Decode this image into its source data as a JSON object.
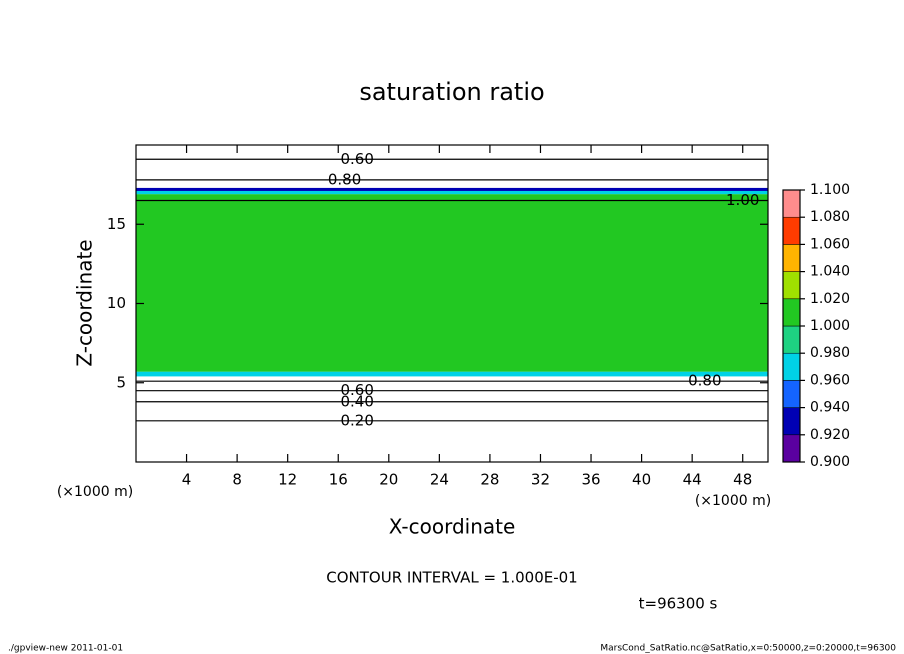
{
  "chart_data": {
    "type": "contour",
    "title": "saturation ratio",
    "xlabel": "X-coordinate",
    "ylabel": "Z-coordinate",
    "xunit": "(×1000 m)",
    "yunit": "(×1000 m)",
    "xlim": [
      0,
      50
    ],
    "xticks": [
      4,
      8,
      12,
      16,
      20,
      24,
      28,
      32,
      36,
      40,
      44,
      48
    ],
    "ylim": [
      0,
      20
    ],
    "yticks": [
      5,
      10,
      15
    ],
    "z_edges": [
      0,
      5.4,
      5.7,
      16.9,
      17.1,
      17.3,
      20
    ],
    "values": [
      0.5,
      0.97,
      1.005,
      0.97,
      0.93,
      0.7
    ],
    "colorbar": {
      "levels": [
        {
          "value": 0.9,
          "label": "0.900"
        },
        {
          "value": 0.92,
          "label": "0.920"
        },
        {
          "value": 0.94,
          "label": "0.940"
        },
        {
          "value": 0.96,
          "label": "0.960"
        },
        {
          "value": 0.98,
          "label": "0.980"
        },
        {
          "value": 1.0,
          "label": "1.000"
        },
        {
          "value": 1.02,
          "label": "1.020"
        },
        {
          "value": 1.04,
          "label": "1.040"
        },
        {
          "value": 1.06,
          "label": "1.060"
        },
        {
          "value": 1.08,
          "label": "1.080"
        },
        {
          "value": 1.1,
          "label": "1.100"
        }
      ],
      "colors": [
        "#5a00a0",
        "#0000b4",
        "#1464ff",
        "#00d2e6",
        "#1ed282",
        "#22c822",
        "#a0e000",
        "#ffb400",
        "#ff3c00",
        "#ff8c8c"
      ]
    },
    "contours": [
      {
        "value": 0.2,
        "label": "0.20",
        "z": 2.6,
        "x": 17.5
      },
      {
        "value": 0.4,
        "label": "0.40",
        "z": 3.8,
        "x": 17.5
      },
      {
        "value": 0.6,
        "label": "0.60",
        "z": 4.5,
        "x": 17.5
      },
      {
        "value": 0.8,
        "label": "0.80",
        "z": 5.1,
        "x": 45
      },
      {
        "value": 0.8,
        "label": "0.80",
        "z": 17.8,
        "x": 16.5
      },
      {
        "value": 0.6,
        "label": "0.60",
        "z": 19.1,
        "x": 17.5
      },
      {
        "value": 1.0,
        "label": "1.00",
        "z": 16.5,
        "x": 48
      }
    ],
    "contour_interval": "CONTOUR INTERVAL = 1.000E-01",
    "time_label": "t=96300 s",
    "footer_left": "./gpview-new  2011-01-01",
    "footer_right": "MarsCond_SatRatio.nc@SatRatio,x=0:50000,z=0:20000,t=96300"
  }
}
